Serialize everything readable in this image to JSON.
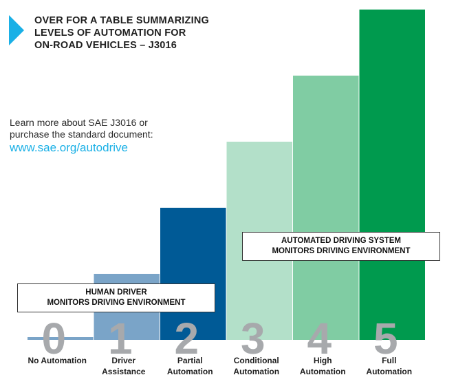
{
  "header": {
    "title_lines": [
      "OVER FOR A TABLE SUMMARIZING",
      "LEVELS OF AUTOMATION FOR",
      "ON-ROAD VEHICLES – J3016"
    ]
  },
  "info": {
    "lines": [
      "Learn more about SAE J3016 or",
      "purchase the standard document:"
    ],
    "link": "www.sae.org/autodrive"
  },
  "colors": {
    "accent": "#1ab0e6",
    "level_digit": "#a7a9ac"
  },
  "chart_data": {
    "type": "bar",
    "levels": [
      "0",
      "1",
      "2",
      "3",
      "4",
      "5"
    ],
    "categories": [
      [
        "No Automation"
      ],
      [
        "Driver",
        "Assistance"
      ],
      [
        "Partial",
        "Automation"
      ],
      [
        "Conditional",
        "Automation"
      ],
      [
        "High",
        "Automation"
      ],
      [
        "Full",
        "Automation"
      ]
    ],
    "values": [
      0,
      1,
      2,
      3,
      4,
      5
    ],
    "ylim": [
      0,
      5
    ],
    "colors": [
      "#7aa4c8",
      "#7aa4c8",
      "#005a96",
      "#b3e0c9",
      "#80cca3",
      "#009a4e"
    ],
    "group_labels": [
      {
        "lines": [
          "HUMAN DRIVER",
          "MONITORS DRIVING ENVIRONMENT"
        ],
        "levels": [
          0,
          1,
          2
        ]
      },
      {
        "lines": [
          "AUTOMATED DRIVING SYSTEM",
          "MONITORS DRIVING ENVIRONMENT"
        ],
        "levels": [
          3,
          4,
          5
        ]
      }
    ]
  }
}
